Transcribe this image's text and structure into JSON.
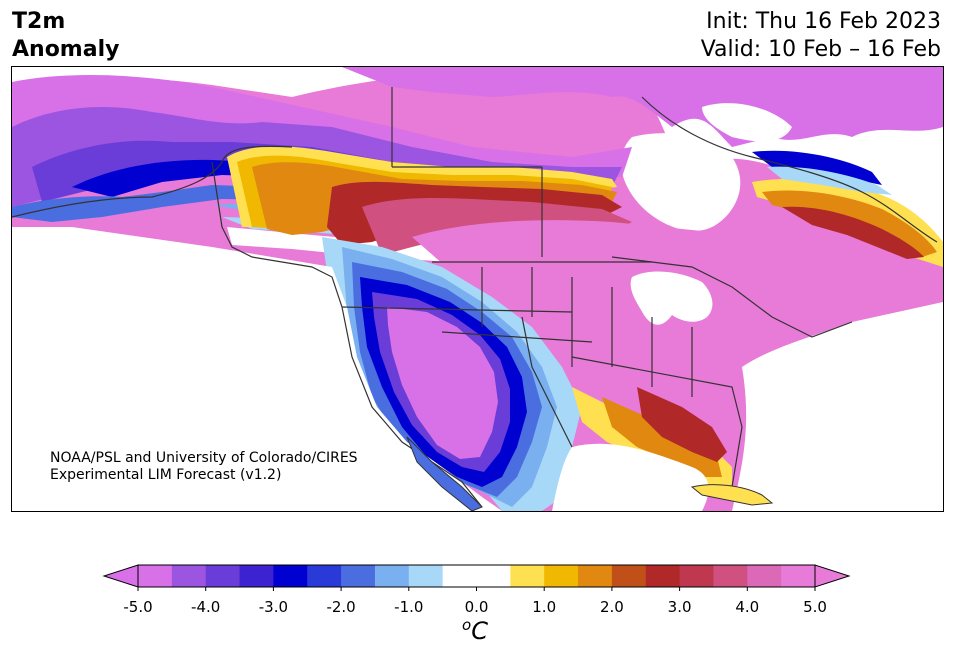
{
  "header": {
    "title_line1": "T2m",
    "title_line2": "Anomaly",
    "init": "Init: Thu 16 Feb 2023",
    "valid": "Valid: 10 Feb – 16 Feb"
  },
  "credit": {
    "line1": "NOAA/PSL and University of Colorado/CIRES",
    "line2": "Experimental LIM Forecast (v1.2)"
  },
  "colorbar": {
    "unit_base": "C",
    "unit_sup": "o",
    "ticks": [
      "-5.0",
      "-4.0",
      "-3.0",
      "-2.0",
      "-1.0",
      "0.0",
      "1.0",
      "2.0",
      "3.0",
      "4.0",
      "5.0"
    ],
    "under_color": "#d870e8",
    "over_color": "#e87ad8",
    "colors": [
      "#d870e8",
      "#9c55e0",
      "#6a3cd8",
      "#3c22d0",
      "#0000d0",
      "#2a3ad8",
      "#4a6ee0",
      "#7ab0f0",
      "#a8d8f8",
      "#ffffff",
      "#ffffff",
      "#ffe050",
      "#f0b800",
      "#e08810",
      "#c05018",
      "#b02828",
      "#c03850",
      "#d05080",
      "#dc68b8",
      "#e87ad8"
    ]
  },
  "map": {
    "region": "North America",
    "variable": "2-meter temperature anomaly",
    "colors": {
      "deep_magenta": "#d870e8",
      "purple": "#9c55e0",
      "violet": "#6a3cd8",
      "blue": "#0000d0",
      "mid_blue": "#4a6ee0",
      "light_blue": "#7ab0f0",
      "pale_blue": "#a8d8f8",
      "yellow": "#ffe050",
      "gold": "#f0b800",
      "orange": "#e08810",
      "rust": "#c05018",
      "red": "#b02828",
      "rose": "#d05080",
      "pink": "#e87ad8",
      "coast": "#333333"
    }
  }
}
